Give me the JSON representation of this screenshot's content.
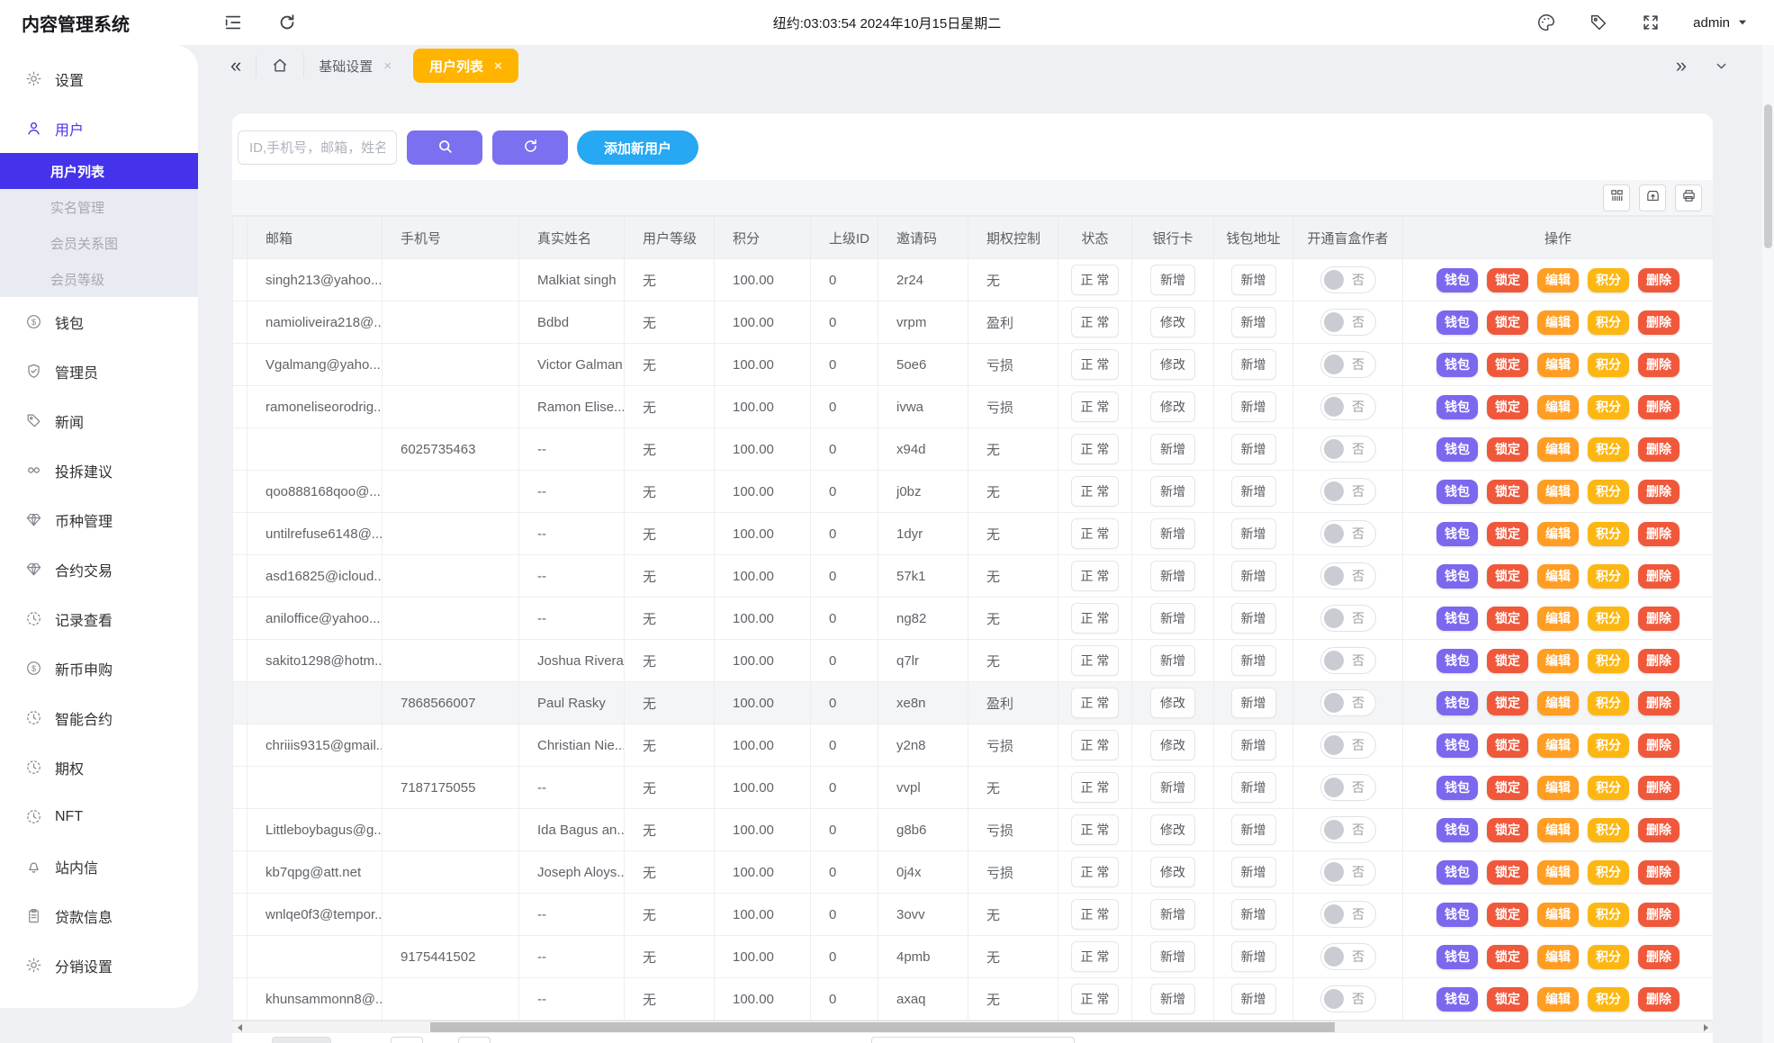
{
  "app": {
    "title": "内容管理系统",
    "clock_text": "纽约:03:03:54 2024年10月15日星期二",
    "user": "admin"
  },
  "colors": {
    "accent": "#4433ea",
    "tab_active": "#ffb400",
    "btn_purple": "#7a70f0",
    "btn_blue": "#26a8f3",
    "wallet": "#7b68ee",
    "lock": "#f0583b",
    "edit": "#ff9e22",
    "points": "#fcb712",
    "delete": "#f0583b"
  },
  "topbar": {
    "left_icons": [
      {
        "name": "menu-fold-icon",
        "icon": "menu-fold"
      },
      {
        "name": "refresh-icon",
        "icon": "refresh"
      }
    ],
    "right_icons": [
      {
        "name": "palette-icon",
        "icon": "palette"
      },
      {
        "name": "tag-icon",
        "icon": "tag"
      },
      {
        "name": "fullscreen-icon",
        "icon": "fullscreen"
      }
    ]
  },
  "sidebar": {
    "items": [
      {
        "label": "设置",
        "icon": "gear"
      },
      {
        "label": "用户",
        "icon": "user",
        "active": true,
        "children": [
          {
            "label": "用户列表",
            "active": true
          },
          {
            "label": "实名管理"
          },
          {
            "label": "会员关系图"
          },
          {
            "label": "会员等级"
          }
        ]
      },
      {
        "label": "钱包",
        "icon": "dollar"
      },
      {
        "label": "管理员",
        "icon": "shield"
      },
      {
        "label": "新闻",
        "icon": "tag"
      },
      {
        "label": "投拆建议",
        "icon": "infinity"
      },
      {
        "label": "币种管理",
        "icon": "gem"
      },
      {
        "label": "合约交易",
        "icon": "gem"
      },
      {
        "label": "记录查看",
        "icon": "clock"
      },
      {
        "label": "新币申购",
        "icon": "dollar"
      },
      {
        "label": "智能合约",
        "icon": "clock"
      },
      {
        "label": "期权",
        "icon": "clock"
      },
      {
        "label": "NFT",
        "icon": "clock"
      },
      {
        "label": "站内信",
        "icon": "bell"
      },
      {
        "label": "贷款信息",
        "icon": "clipboard"
      },
      {
        "label": "分销设置",
        "icon": "gear"
      }
    ]
  },
  "tabs": {
    "items": [
      {
        "label": "基础设置",
        "active": false
      },
      {
        "label": "用户列表",
        "active": true
      }
    ]
  },
  "filters": {
    "search_placeholder": "ID,手机号，邮箱，姓名",
    "add_user_label": "添加新用户"
  },
  "table": {
    "columns": [
      "",
      "邮箱",
      "手机号",
      "真实姓名",
      "用户等级",
      "积分",
      "上级ID",
      "邀请码",
      "期权控制",
      "状态",
      "银行卡",
      "钱包地址",
      "开通盲盒作者",
      "操作"
    ],
    "actions": [
      {
        "label": "钱包",
        "key": "wallet"
      },
      {
        "label": "锁定",
        "key": "lock"
      },
      {
        "label": "编辑",
        "key": "edit"
      },
      {
        "label": "积分",
        "key": "points"
      },
      {
        "label": "删除",
        "key": "delete"
      }
    ],
    "rows": [
      {
        "email": "singh213@yahoo....",
        "phone": "",
        "realname": "Malkiat singh",
        "level": "无",
        "points": "100.00",
        "parent_id": "0",
        "invite": "2r24",
        "option": "无",
        "status": "正 常",
        "bank": "新增",
        "wallet": "新增",
        "blindbox": "否",
        "highlight": false
      },
      {
        "email": "namioliveira218@...",
        "phone": "",
        "realname": "Bdbd",
        "level": "无",
        "points": "100.00",
        "parent_id": "0",
        "invite": "vrpm",
        "option": "盈利",
        "status": "正 常",
        "bank": "修改",
        "wallet": "新增",
        "blindbox": "否",
        "highlight": false
      },
      {
        "email": "Vgalmang@yaho...",
        "phone": "",
        "realname": "Victor Galman",
        "level": "无",
        "points": "100.00",
        "parent_id": "0",
        "invite": "5oe6",
        "option": "亏损",
        "status": "正 常",
        "bank": "修改",
        "wallet": "新增",
        "blindbox": "否",
        "highlight": false
      },
      {
        "email": "ramoneliseorodrig...",
        "phone": "",
        "realname": "Ramon Elise...",
        "level": "无",
        "points": "100.00",
        "parent_id": "0",
        "invite": "ivwa",
        "option": "亏损",
        "status": "正 常",
        "bank": "修改",
        "wallet": "新增",
        "blindbox": "否",
        "highlight": false
      },
      {
        "email": "",
        "phone": "6025735463",
        "realname": "--",
        "level": "无",
        "points": "100.00",
        "parent_id": "0",
        "invite": "x94d",
        "option": "无",
        "status": "正 常",
        "bank": "新增",
        "wallet": "新增",
        "blindbox": "否",
        "highlight": false
      },
      {
        "email": "qoo888168qoo@...",
        "phone": "",
        "realname": "--",
        "level": "无",
        "points": "100.00",
        "parent_id": "0",
        "invite": "j0bz",
        "option": "无",
        "status": "正 常",
        "bank": "新增",
        "wallet": "新增",
        "blindbox": "否",
        "highlight": false
      },
      {
        "email": "untilrefuse6148@...",
        "phone": "",
        "realname": "--",
        "level": "无",
        "points": "100.00",
        "parent_id": "0",
        "invite": "1dyr",
        "option": "无",
        "status": "正 常",
        "bank": "新增",
        "wallet": "新增",
        "blindbox": "否",
        "highlight": false
      },
      {
        "email": "asd16825@icloud...",
        "phone": "",
        "realname": "--",
        "level": "无",
        "points": "100.00",
        "parent_id": "0",
        "invite": "57k1",
        "option": "无",
        "status": "正 常",
        "bank": "新增",
        "wallet": "新增",
        "blindbox": "否",
        "highlight": false
      },
      {
        "email": "aniloffice@yahoo....",
        "phone": "",
        "realname": "--",
        "level": "无",
        "points": "100.00",
        "parent_id": "0",
        "invite": "ng82",
        "option": "无",
        "status": "正 常",
        "bank": "新增",
        "wallet": "新增",
        "blindbox": "否",
        "highlight": false
      },
      {
        "email": "sakito1298@hotm...",
        "phone": "",
        "realname": "Joshua Rivera",
        "level": "无",
        "points": "100.00",
        "parent_id": "0",
        "invite": "q7lr",
        "option": "无",
        "status": "正 常",
        "bank": "新增",
        "wallet": "新增",
        "blindbox": "否",
        "highlight": false
      },
      {
        "email": "",
        "phone": "7868566007",
        "realname": "Paul Rasky",
        "level": "无",
        "points": "100.00",
        "parent_id": "0",
        "invite": "xe8n",
        "option": "盈利",
        "status": "正 常",
        "bank": "修改",
        "wallet": "新增",
        "blindbox": "否",
        "highlight": true
      },
      {
        "email": "chriiis9315@gmail...",
        "phone": "",
        "realname": "Christian Nie...",
        "level": "无",
        "points": "100.00",
        "parent_id": "0",
        "invite": "y2n8",
        "option": "亏损",
        "status": "正 常",
        "bank": "修改",
        "wallet": "新增",
        "blindbox": "否",
        "highlight": false
      },
      {
        "email": "",
        "phone": "7187175055",
        "realname": "--",
        "level": "无",
        "points": "100.00",
        "parent_id": "0",
        "invite": "vvpl",
        "option": "无",
        "status": "正 常",
        "bank": "新增",
        "wallet": "新增",
        "blindbox": "否",
        "highlight": false
      },
      {
        "email": "Littleboybagus@g...",
        "phone": "",
        "realname": "Ida Bagus an...",
        "level": "无",
        "points": "100.00",
        "parent_id": "0",
        "invite": "g8b6",
        "option": "亏损",
        "status": "正 常",
        "bank": "修改",
        "wallet": "新增",
        "blindbox": "否",
        "highlight": false
      },
      {
        "email": "kb7qpg@att.net",
        "phone": "",
        "realname": "Joseph Aloys...",
        "level": "无",
        "points": "100.00",
        "parent_id": "0",
        "invite": "0j4x",
        "option": "亏损",
        "status": "正 常",
        "bank": "修改",
        "wallet": "新增",
        "blindbox": "否",
        "highlight": false
      },
      {
        "email": "wnlqe0f3@tempor...",
        "phone": "",
        "realname": "--",
        "level": "无",
        "points": "100.00",
        "parent_id": "0",
        "invite": "3ovv",
        "option": "无",
        "status": "正 常",
        "bank": "新增",
        "wallet": "新增",
        "blindbox": "否",
        "highlight": false
      },
      {
        "email": "",
        "phone": "9175441502",
        "realname": "--",
        "level": "无",
        "points": "100.00",
        "parent_id": "0",
        "invite": "4pmb",
        "option": "无",
        "status": "正 常",
        "bank": "新增",
        "wallet": "新增",
        "blindbox": "否",
        "highlight": false
      },
      {
        "email": "khunsammonn8@...",
        "phone": "",
        "realname": "--",
        "level": "无",
        "points": "100.00",
        "parent_id": "0",
        "invite": "axaq",
        "option": "无",
        "status": "正 常",
        "bank": "新增",
        "wallet": "新增",
        "blindbox": "否",
        "highlight": false
      }
    ]
  }
}
